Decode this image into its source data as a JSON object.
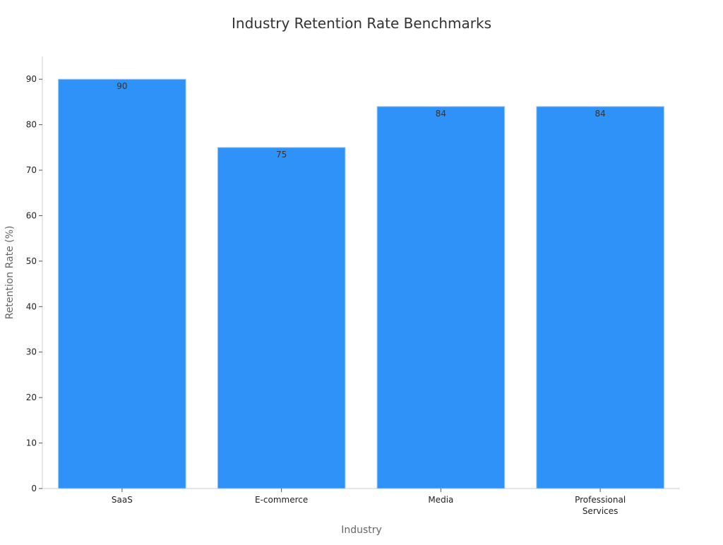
{
  "chart_data": {
    "type": "bar",
    "title": "Industry Retention Rate Benchmarks",
    "xlabel": "Industry",
    "ylabel": "Retention Rate (%)",
    "categories": [
      "SaaS",
      "E-commerce",
      "Media",
      "Professional Services"
    ],
    "values": [
      90,
      75,
      84,
      84
    ],
    "ylim": [
      0,
      95
    ],
    "yticks": [
      0,
      10,
      20,
      30,
      40,
      50,
      60,
      70,
      80,
      90
    ],
    "grid": false,
    "legend": "none",
    "bar_color": "#2f92f8",
    "bar_edge_color": "#9fcaf6"
  }
}
